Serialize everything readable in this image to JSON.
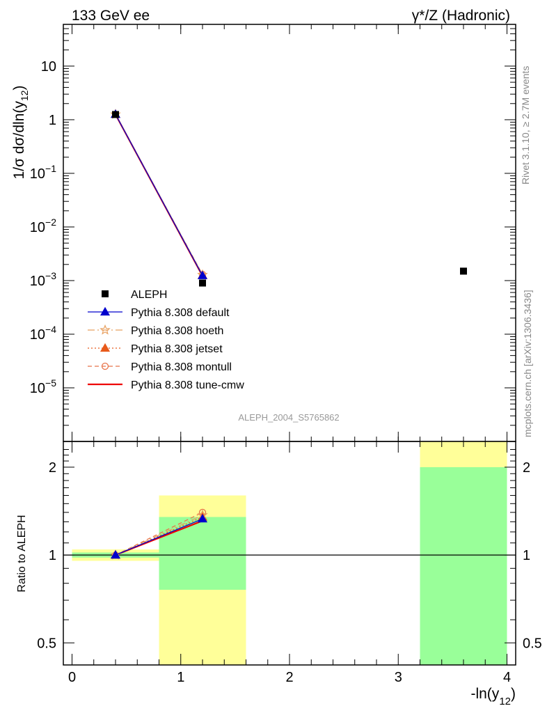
{
  "header": {
    "left": "133 GeV ee",
    "right": "γ*/Z (Hadronic)"
  },
  "side_labels": {
    "rivet": "Rivet 3.1.10, ≥ 2.7M events",
    "mcplots": "mcplots.cern.ch [arXiv:1306.3436]"
  },
  "watermark": "ALEPH_2004_S5765862",
  "colors": {
    "data": "#000000",
    "default": "#0000cc",
    "hoeth": "#e8a060",
    "jetset": "#e85a1a",
    "montull": "#e8744a",
    "tune_cmw": "#ee0000",
    "band_inner": "#99ff99",
    "band_outer": "#ffff99"
  },
  "chart_data": [
    {
      "type": "scatter",
      "panel": "main",
      "ylabel": "1/σ dσ/dln(y12)",
      "yscale": "log",
      "ylim": [
        1e-06,
        60
      ],
      "xlim": [
        -0.08,
        4.08
      ],
      "yticklabels": [
        "10",
        "1",
        "10^-1",
        "10^-2",
        "10^-3",
        "10^-4",
        "10^-5"
      ],
      "series": [
        {
          "name": "ALEPH",
          "key": "data",
          "style": "square",
          "x": [
            0.4,
            1.2,
            3.6
          ],
          "y": [
            1.25,
            0.0009,
            0.0015
          ]
        },
        {
          "name": "Pythia 8.308 default",
          "key": "default",
          "style": "triangle-solid",
          "x": [
            0.4,
            1.2
          ],
          "y": [
            1.26,
            0.00124
          ]
        },
        {
          "name": "Pythia 8.308 hoeth",
          "key": "hoeth",
          "style": "star-dashdot",
          "x": [
            0.4,
            1.2
          ],
          "y": [
            1.26,
            0.00128
          ]
        },
        {
          "name": "Pythia 8.308 jetset",
          "key": "jetset",
          "style": "triangle-dotted",
          "x": [
            0.4,
            1.2
          ],
          "y": [
            1.26,
            0.00126
          ]
        },
        {
          "name": "Pythia 8.308 montull",
          "key": "montull",
          "style": "circle-dashed",
          "x": [
            0.4,
            1.2
          ],
          "y": [
            1.26,
            0.0013
          ]
        },
        {
          "name": "Pythia 8.308 tune-cmw",
          "key": "tune_cmw",
          "style": "line",
          "x": [
            0.4,
            1.2
          ],
          "y": [
            1.25,
            0.00122
          ]
        }
      ]
    },
    {
      "type": "line",
      "panel": "ratio",
      "ylabel": "Ratio to ALEPH",
      "xlabel": "-ln(y12)",
      "yscale": "log",
      "ylim": [
        0.42,
        2.45
      ],
      "xlim": [
        -0.08,
        4.08
      ],
      "xticks": [
        0,
        1,
        2,
        3,
        4
      ],
      "yticks": [
        0.5,
        1,
        2
      ],
      "bands": [
        {
          "x0": 0.0,
          "x1": 0.8,
          "inner": [
            0.98,
            1.02
          ],
          "outer": [
            0.955,
            1.045
          ]
        },
        {
          "x0": 0.8,
          "x1": 1.6,
          "inner": [
            0.76,
            1.35
          ],
          "outer": [
            0.42,
            1.6
          ]
        },
        {
          "x0": 3.2,
          "x1": 4.0,
          "inner": [
            0.42,
            2.0
          ],
          "outer": [
            0.42,
            2.45
          ]
        }
      ],
      "series": [
        {
          "name": "Pythia 8.308 default",
          "key": "default",
          "x": [
            0.4,
            1.2
          ],
          "y": [
            1.0,
            1.33
          ]
        },
        {
          "name": "Pythia 8.308 hoeth",
          "key": "hoeth",
          "x": [
            0.4,
            1.2
          ],
          "y": [
            1.0,
            1.37
          ]
        },
        {
          "name": "Pythia 8.308 jetset",
          "key": "jetset",
          "x": [
            0.4,
            1.2
          ],
          "y": [
            1.0,
            1.35
          ]
        },
        {
          "name": "Pythia 8.308 montull",
          "key": "montull",
          "x": [
            0.4,
            1.2
          ],
          "y": [
            1.0,
            1.4
          ]
        },
        {
          "name": "Pythia 8.308 tune-cmw",
          "key": "tune_cmw",
          "x": [
            0.4,
            1.2
          ],
          "y": [
            1.0,
            1.31
          ]
        }
      ]
    }
  ]
}
